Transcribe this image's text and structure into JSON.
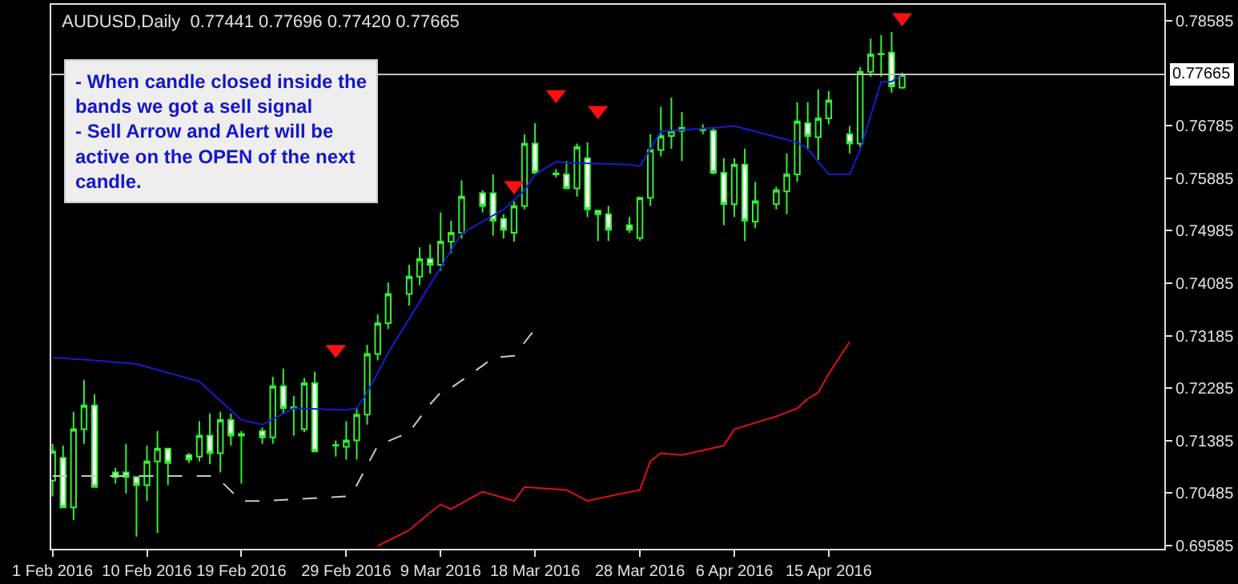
{
  "chart_data": {
    "type": "candlestick",
    "title": "AUDUSD,Daily  0.77441 0.77696 0.77420 0.77665",
    "annotations": [
      "- When candle closed inside the bands we got a sell signal",
      "- Sell Arrow and Alert will be active on the OPEN of the next candle."
    ],
    "color": "#33ee33",
    "x": [
      "2016-02-01",
      "2016-02-02",
      "2016-02-03",
      "2016-02-04",
      "2016-02-05",
      "2016-02-07",
      "2016-02-08",
      "2016-02-09",
      "2016-02-10",
      "2016-02-11",
      "2016-02-12",
      "2016-02-14",
      "2016-02-15",
      "2016-02-16",
      "2016-02-17",
      "2016-02-18",
      "2016-02-19",
      "2016-02-21",
      "2016-02-22",
      "2016-02-23",
      "2016-02-24",
      "2016-02-25",
      "2016-02-26",
      "2016-02-28",
      "2016-02-29",
      "2016-03-01",
      "2016-03-02",
      "2016-03-03",
      "2016-03-04",
      "2016-03-06",
      "2016-03-07",
      "2016-03-08",
      "2016-03-09",
      "2016-03-10",
      "2016-03-11",
      "2016-03-13",
      "2016-03-14",
      "2016-03-15",
      "2016-03-16",
      "2016-03-17",
      "2016-03-18",
      "2016-03-20",
      "2016-03-21",
      "2016-03-22",
      "2016-03-23",
      "2016-03-24",
      "2016-03-25",
      "2016-03-27",
      "2016-03-28",
      "2016-03-29",
      "2016-03-30",
      "2016-03-31",
      "2016-04-01",
      "2016-04-03",
      "2016-04-04",
      "2016-04-05",
      "2016-04-06",
      "2016-04-07",
      "2016-04-08",
      "2016-04-10",
      "2016-04-11",
      "2016-04-12",
      "2016-04-13",
      "2016-04-14",
      "2016-04-15",
      "2016-04-17",
      "2016-04-18",
      "2016-04-19",
      "2016-04-20",
      "2016-04-21",
      "2016-04-22"
    ],
    "ohlc": [
      [
        0.707,
        0.7133,
        0.7043,
        0.712
      ],
      [
        0.7109,
        0.713,
        0.7024,
        0.7024
      ],
      [
        0.7024,
        0.7188,
        0.7002,
        0.7158
      ],
      [
        0.7158,
        0.7243,
        0.7133,
        0.7199
      ],
      [
        0.7199,
        0.7218,
        0.7059,
        0.7059
      ],
      [
        0.7084,
        0.7092,
        0.7065,
        0.7076
      ],
      [
        0.7084,
        0.7133,
        0.7048,
        0.7076
      ],
      [
        0.7076,
        0.7076,
        0.6974,
        0.7062
      ],
      [
        0.7062,
        0.713,
        0.7035,
        0.7103
      ],
      [
        0.7103,
        0.7155,
        0.698,
        0.7125
      ],
      [
        0.7125,
        0.7125,
        0.7062,
        0.71
      ],
      [
        0.7114,
        0.7117,
        0.71,
        0.7106
      ],
      [
        0.7111,
        0.7172,
        0.7103,
        0.7147
      ],
      [
        0.7147,
        0.7185,
        0.7098,
        0.7117
      ],
      [
        0.7117,
        0.7188,
        0.7084,
        0.7174
      ],
      [
        0.7174,
        0.7185,
        0.713,
        0.7147
      ],
      [
        0.715,
        0.7155,
        0.7065,
        0.7147
      ],
      [
        0.7155,
        0.7161,
        0.7133,
        0.7144
      ],
      [
        0.7144,
        0.7248,
        0.7133,
        0.7232
      ],
      [
        0.7232,
        0.7262,
        0.7185,
        0.7194
      ],
      [
        0.7194,
        0.7215,
        0.7147,
        0.7196
      ],
      [
        0.7158,
        0.7246,
        0.7153,
        0.7237
      ],
      [
        0.7237,
        0.7257,
        0.712,
        0.712
      ],
      [
        0.713,
        0.7139,
        0.7111,
        0.7131
      ],
      [
        0.7128,
        0.7172,
        0.7106,
        0.7139
      ],
      [
        0.7139,
        0.7194,
        0.7106,
        0.7183
      ],
      [
        0.7183,
        0.7303,
        0.7166,
        0.7287
      ],
      [
        0.7287,
        0.7355,
        0.7276,
        0.734
      ],
      [
        0.734,
        0.741,
        0.733,
        0.739
      ],
      [
        0.739,
        0.744,
        0.737,
        0.742
      ],
      [
        0.742,
        0.747,
        0.7405,
        0.745
      ],
      [
        0.745,
        0.7475,
        0.7425,
        0.744
      ],
      [
        0.744,
        0.753,
        0.743,
        0.748
      ],
      [
        0.748,
        0.7516,
        0.746,
        0.7495
      ],
      [
        0.7495,
        0.7585,
        0.7485,
        0.7557
      ],
      [
        0.7563,
        0.7568,
        0.753,
        0.7541
      ],
      [
        0.7563,
        0.7595,
        0.749,
        0.7516
      ],
      [
        0.7519,
        0.7527,
        0.7485,
        0.75
      ],
      [
        0.7495,
        0.7549,
        0.748,
        0.7541
      ],
      [
        0.7541,
        0.7664,
        0.7535,
        0.7648
      ],
      [
        0.7648,
        0.7683,
        0.7595,
        0.7598
      ],
      [
        0.7595,
        0.7604,
        0.759,
        0.7597
      ],
      [
        0.7595,
        0.7618,
        0.7571,
        0.7571
      ],
      [
        0.7571,
        0.7648,
        0.7557,
        0.7642
      ],
      [
        0.7623,
        0.765,
        0.7522,
        0.7535
      ],
      [
        0.7533,
        0.7533,
        0.7481,
        0.7527
      ],
      [
        0.7527,
        0.7541,
        0.7481,
        0.75
      ],
      [
        0.7508,
        0.7522,
        0.7495,
        0.75
      ],
      [
        0.7486,
        0.7557,
        0.7481,
        0.7555
      ],
      [
        0.7555,
        0.7664,
        0.7541,
        0.7637
      ],
      [
        0.7637,
        0.7711,
        0.7626,
        0.7661
      ],
      [
        0.7661,
        0.7727,
        0.7639,
        0.767
      ],
      [
        0.767,
        0.7702,
        0.7618,
        0.7675
      ],
      [
        0.7671,
        0.7681,
        0.7664,
        0.7672
      ],
      [
        0.767,
        0.7675,
        0.7595,
        0.7598
      ],
      [
        0.7598,
        0.7623,
        0.7508,
        0.7544
      ],
      [
        0.7544,
        0.7623,
        0.7522,
        0.7612
      ],
      [
        0.7612,
        0.7639,
        0.7481,
        0.7516
      ],
      [
        0.7514,
        0.7582,
        0.7503,
        0.7549
      ],
      [
        0.7544,
        0.7574,
        0.7535,
        0.7568
      ],
      [
        0.7566,
        0.7631,
        0.7527,
        0.7595
      ],
      [
        0.7595,
        0.7719,
        0.7582,
        0.7686
      ],
      [
        0.7683,
        0.7719,
        0.7637,
        0.7661
      ],
      [
        0.7659,
        0.7741,
        0.762,
        0.7691
      ],
      [
        0.7691,
        0.7738,
        0.7681,
        0.7722
      ],
      [
        0.7664,
        0.7678,
        0.7631,
        0.7648
      ],
      [
        0.7648,
        0.7779,
        0.7642,
        0.7771
      ],
      [
        0.7771,
        0.7828,
        0.7763,
        0.7801
      ],
      [
        0.7801,
        0.7834,
        0.7763,
        0.7802
      ],
      [
        0.7804,
        0.7839,
        0.7735,
        0.7746
      ],
      [
        0.77441,
        0.77696,
        0.7742,
        0.77665
      ]
    ],
    "series": [
      {
        "type": "line",
        "color": "#1a1ad0",
        "x": [
          "2016-02-01",
          "2016-02-05",
          "2016-02-09",
          "2016-02-15",
          "2016-02-19",
          "2016-02-21",
          "2016-02-24",
          "2016-02-29",
          "2016-03-01",
          "2016-03-02",
          "2016-03-04",
          "2016-03-11",
          "2016-03-15",
          "2016-03-17",
          "2016-03-18",
          "2016-03-20",
          "2016-03-21",
          "2016-03-27",
          "2016-03-28",
          "2016-03-30",
          "2016-04-04",
          "2016-04-06",
          "2016-04-12",
          "2016-04-13",
          "2016-04-15",
          "2016-04-17",
          "2016-04-18",
          "2016-04-20",
          "2016-04-21",
          "2016-04-22"
        ],
        "values": [
          0.7281,
          0.7276,
          0.727,
          0.724,
          0.7174,
          0.7166,
          0.7194,
          0.7191,
          0.7194,
          0.7221,
          0.7289,
          0.7494,
          0.7535,
          0.7568,
          0.7595,
          0.7617,
          0.7615,
          0.7612,
          0.7609,
          0.7669,
          0.7675,
          0.7678,
          0.765,
          0.7639,
          0.7595,
          0.7595,
          0.7637,
          0.7754,
          0.7754,
          0.7768
        ]
      },
      {
        "type": "line",
        "color": "#c8c8c8",
        "line_style": "dashed",
        "x": [
          "2016-02-01",
          "2016-02-16",
          "2016-02-17",
          "2016-02-19",
          "2016-02-21",
          "2016-02-29",
          "2016-03-01",
          "2016-03-03",
          "2016-03-06",
          "2016-03-08",
          "2016-03-09",
          "2016-03-10",
          "2016-03-13",
          "2016-03-14",
          "2016-03-16",
          "2016-03-18"
        ],
        "values": [
          0.7078,
          0.7078,
          0.707,
          0.7035,
          0.7035,
          0.7043,
          0.7062,
          0.713,
          0.7153,
          0.7201,
          0.7221,
          0.7229,
          0.7267,
          0.7281,
          0.7284,
          0.733
        ]
      },
      {
        "type": "line",
        "color": "#e01010",
        "x": [
          "2016-03-03",
          "2016-03-06",
          "2016-03-08",
          "2016-03-09",
          "2016-03-10",
          "2016-03-13",
          "2016-03-16",
          "2016-03-17",
          "2016-03-21",
          "2016-03-23",
          "2016-03-25",
          "2016-03-28",
          "2016-03-29",
          "2016-03-30",
          "2016-04-01",
          "2016-04-05",
          "2016-04-06",
          "2016-04-10",
          "2016-04-12",
          "2016-04-13",
          "2016-04-14",
          "2016-04-15",
          "2016-04-17"
        ],
        "values": [
          0.6958,
          0.6985,
          0.7015,
          0.7029,
          0.7021,
          0.7051,
          0.7035,
          0.7059,
          0.7054,
          0.7035,
          0.7043,
          0.7054,
          0.7103,
          0.7117,
          0.7114,
          0.713,
          0.7158,
          0.718,
          0.7194,
          0.721,
          0.7221,
          0.7253,
          0.7308
        ]
      },
      {
        "type": "scatter",
        "color": "#ff1010",
        "marker": "triangle",
        "x": [
          "2016-02-28",
          "2016-03-16",
          "2016-03-20",
          "2016-03-24",
          "2016-04-22"
        ],
        "values": [
          0.7295,
          0.7576,
          0.7732,
          0.7705,
          0.7864
        ]
      }
    ],
    "xlim": [
      "2016-01-31T21:00",
      "2016-05-17"
    ],
    "xticks": [
      {
        "value": "2016-02-01",
        "label": "1 Feb 2016"
      },
      {
        "value": "2016-02-10",
        "label": "10 Feb 2016"
      },
      {
        "value": "2016-02-19",
        "label": "19 Feb 2016"
      },
      {
        "value": "2016-02-29",
        "label": "29 Feb 2016"
      },
      {
        "value": "2016-03-09",
        "label": "9 Mar 2016"
      },
      {
        "value": "2016-03-18",
        "label": "18 Mar 2016"
      },
      {
        "value": "2016-03-28",
        "label": "28 Mar 2016"
      },
      {
        "value": "2016-04-06",
        "label": "6 Apr 2016"
      },
      {
        "value": "2016-04-15",
        "label": "15 Apr 2016"
      }
    ],
    "ylim": [
      0.6953,
      0.7886
    ],
    "yticks": [
      0.69585,
      0.70485,
      0.71385,
      0.72285,
      0.73185,
      0.74085,
      0.74985,
      0.75885,
      0.76785,
      0.78585
    ],
    "ref_lines": [
      {
        "axis": "y",
        "value": 0.77665,
        "label": "0.77665",
        "color": "#c0c0c0"
      }
    ],
    "grid": false
  }
}
